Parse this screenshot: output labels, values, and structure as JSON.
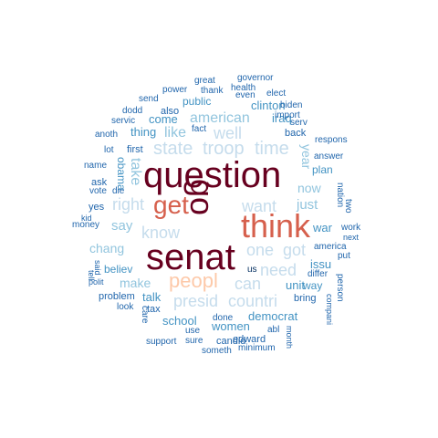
{
  "palette": {
    "c1": "#67001f",
    "c2": "#b2182b",
    "c3": "#d6604d",
    "c4": "#f4a582",
    "c5": "#fdc9a9",
    "c6": "#c5dcec",
    "c7": "#92c5de",
    "c8": "#4393c3",
    "c9": "#2166ac",
    "c10": "#053061"
  },
  "words": [
    {
      "text": "question",
      "color": "c1"
    },
    {
      "text": "senat",
      "color": "c1"
    },
    {
      "text": "go",
      "color": "c1"
    },
    {
      "text": "think",
      "color": "c3"
    },
    {
      "text": "get",
      "color": "c3"
    },
    {
      "text": "peopl",
      "color": "c5"
    },
    {
      "text": "state",
      "color": "c6"
    },
    {
      "text": "troop",
      "color": "c6"
    },
    {
      "text": "time",
      "color": "c6"
    },
    {
      "text": "want",
      "color": "c6"
    },
    {
      "text": "right",
      "color": "c6"
    },
    {
      "text": "know",
      "color": "c6"
    },
    {
      "text": "can",
      "color": "c6"
    },
    {
      "text": "well",
      "color": "c6"
    },
    {
      "text": "one",
      "color": "c6"
    },
    {
      "text": "got",
      "color": "c6"
    },
    {
      "text": "need",
      "color": "c6"
    },
    {
      "text": "presid",
      "color": "c6"
    },
    {
      "text": "countri",
      "color": "c6"
    },
    {
      "text": "american",
      "color": "c7"
    },
    {
      "text": "like",
      "color": "c7"
    },
    {
      "text": "take",
      "color": "c7"
    },
    {
      "text": "say",
      "color": "c7"
    },
    {
      "text": "just",
      "color": "c7"
    },
    {
      "text": "chang",
      "color": "c7"
    },
    {
      "text": "make",
      "color": "c7"
    },
    {
      "text": "now",
      "color": "c7"
    },
    {
      "text": "year",
      "color": "c7"
    },
    {
      "text": "come",
      "color": "c8"
    },
    {
      "text": "thing",
      "color": "c8"
    },
    {
      "text": "clinton",
      "color": "c8"
    },
    {
      "text": "iraq",
      "color": "c8"
    },
    {
      "text": "war",
      "color": "c8"
    },
    {
      "text": "unit",
      "color": "c8"
    },
    {
      "text": "issu",
      "color": "c8"
    },
    {
      "text": "school",
      "color": "c8"
    },
    {
      "text": "women",
      "color": "c8"
    },
    {
      "text": "democrat",
      "color": "c8"
    },
    {
      "text": "talk",
      "color": "c8"
    },
    {
      "text": "believ",
      "color": "c8"
    },
    {
      "text": "plan",
      "color": "c8"
    },
    {
      "text": "way",
      "color": "c8"
    },
    {
      "text": "public",
      "color": "c8"
    },
    {
      "text": "obama",
      "color": "c8"
    },
    {
      "text": "first",
      "color": "c9"
    },
    {
      "text": "also",
      "color": "c9"
    },
    {
      "text": "thank",
      "color": "c9"
    },
    {
      "text": "even",
      "color": "c9"
    },
    {
      "text": "health",
      "color": "c9"
    },
    {
      "text": "governor",
      "color": "c9"
    },
    {
      "text": "great",
      "color": "c9"
    },
    {
      "text": "power",
      "color": "c9"
    },
    {
      "text": "elect",
      "color": "c9"
    },
    {
      "text": "biden",
      "color": "c9"
    },
    {
      "text": "import",
      "color": "c9"
    },
    {
      "text": "serv",
      "color": "c9"
    },
    {
      "text": "back",
      "color": "c9"
    },
    {
      "text": "respons",
      "color": "c9"
    },
    {
      "text": "answer",
      "color": "c9"
    },
    {
      "text": "send",
      "color": "c9"
    },
    {
      "text": "servic",
      "color": "c9"
    },
    {
      "text": "dodd",
      "color": "c9"
    },
    {
      "text": "fact",
      "color": "c9"
    },
    {
      "text": "anoth",
      "color": "c9"
    },
    {
      "text": "lot",
      "color": "c9"
    },
    {
      "text": "name",
      "color": "c9"
    },
    {
      "text": "ask",
      "color": "c9"
    },
    {
      "text": "vote",
      "color": "c9"
    },
    {
      "text": "die",
      "color": "c9"
    },
    {
      "text": "yes",
      "color": "c9"
    },
    {
      "text": "kid",
      "color": "c9"
    },
    {
      "text": "money",
      "color": "c9"
    },
    {
      "text": "nation",
      "color": "c9"
    },
    {
      "text": "two",
      "color": "c9"
    },
    {
      "text": "work",
      "color": "c9"
    },
    {
      "text": "next",
      "color": "c9"
    },
    {
      "text": "america",
      "color": "c9"
    },
    {
      "text": "put",
      "color": "c9"
    },
    {
      "text": "differ",
      "color": "c9"
    },
    {
      "text": "person",
      "color": "c9"
    },
    {
      "text": "bring",
      "color": "c9"
    },
    {
      "text": "compani",
      "color": "c9"
    },
    {
      "text": "said",
      "color": "c9"
    },
    {
      "text": "tell",
      "color": "c9"
    },
    {
      "text": "polit",
      "color": "c9"
    },
    {
      "text": "problem",
      "color": "c9"
    },
    {
      "text": "look",
      "color": "c9"
    },
    {
      "text": "care",
      "color": "c9"
    },
    {
      "text": "tax",
      "color": "c9"
    },
    {
      "text": "us",
      "color": "c10"
    },
    {
      "text": "use",
      "color": "c9"
    },
    {
      "text": "done",
      "color": "c9"
    },
    {
      "text": "candid",
      "color": "c9"
    },
    {
      "text": "edward",
      "color": "c9"
    },
    {
      "text": "abl",
      "color": "c9"
    },
    {
      "text": "month",
      "color": "c9"
    },
    {
      "text": "support",
      "color": "c9"
    },
    {
      "text": "sure",
      "color": "c9"
    },
    {
      "text": "someth",
      "color": "c9"
    },
    {
      "text": "minimum",
      "color": "c9"
    }
  ]
}
